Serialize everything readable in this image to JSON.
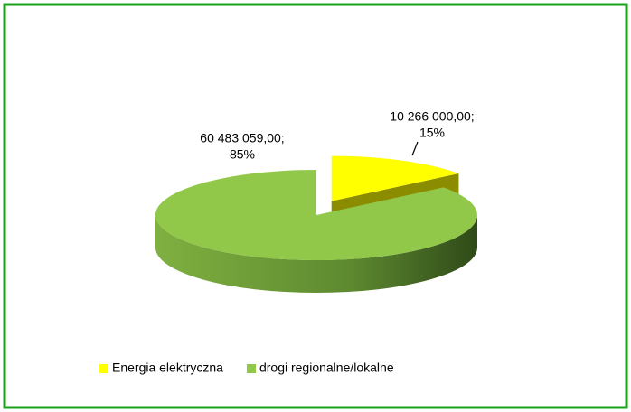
{
  "chart_data": {
    "type": "pie3d",
    "categories": [
      "Energia elektryczna",
      "drogi regionalne/lokalne"
    ],
    "values": [
      10266000,
      60483059
    ],
    "value_labels": [
      "10 266 000,00;",
      "60 483 059,00;"
    ],
    "percentages": [
      15,
      85
    ],
    "percentage_labels": [
      "15%",
      "85%"
    ],
    "colors": [
      "#ffff00",
      "#92c84a"
    ],
    "legend": "bottom"
  }
}
